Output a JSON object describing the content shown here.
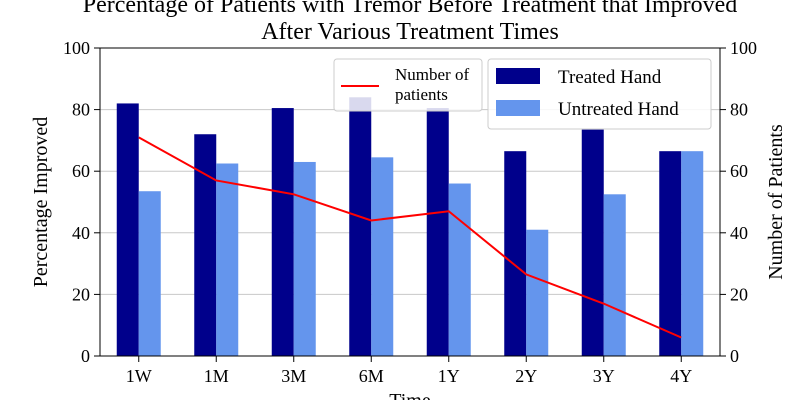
{
  "chart_data": {
    "type": "bar",
    "title": [
      "Percentage of Patients with Tremor Before Treatment that Improved",
      "After Various Treatment Times"
    ],
    "xlabel": "Time",
    "ylabel": "Percentage Improved",
    "y2label": "Number of Patients",
    "categories": [
      "1W",
      "1M",
      "3M",
      "6M",
      "1Y",
      "2Y",
      "3Y",
      "4Y"
    ],
    "ylim": [
      0,
      100
    ],
    "y2lim": [
      0,
      100
    ],
    "yticks": [
      0,
      20,
      40,
      60,
      80,
      100
    ],
    "grid": "horizontal",
    "series": [
      {
        "name": "Treated Hand",
        "type": "bar",
        "color": "#00008b",
        "values": [
          82,
          72,
          80.5,
          84,
          80.5,
          66.5,
          73.5,
          66.5
        ]
      },
      {
        "name": "Untreated Hand",
        "type": "bar",
        "color": "#6495ed",
        "values": [
          53.5,
          62.5,
          63,
          64.5,
          56,
          41,
          52.5,
          66.5
        ]
      }
    ],
    "line": {
      "name": [
        "Number of",
        "patients"
      ],
      "color": "#ff0000",
      "axis": "right",
      "values": [
        71,
        57,
        52.5,
        44,
        47,
        26.5,
        17,
        6
      ]
    },
    "legend_bars_placement": "top-right",
    "legend_line_placement": "top-center"
  }
}
